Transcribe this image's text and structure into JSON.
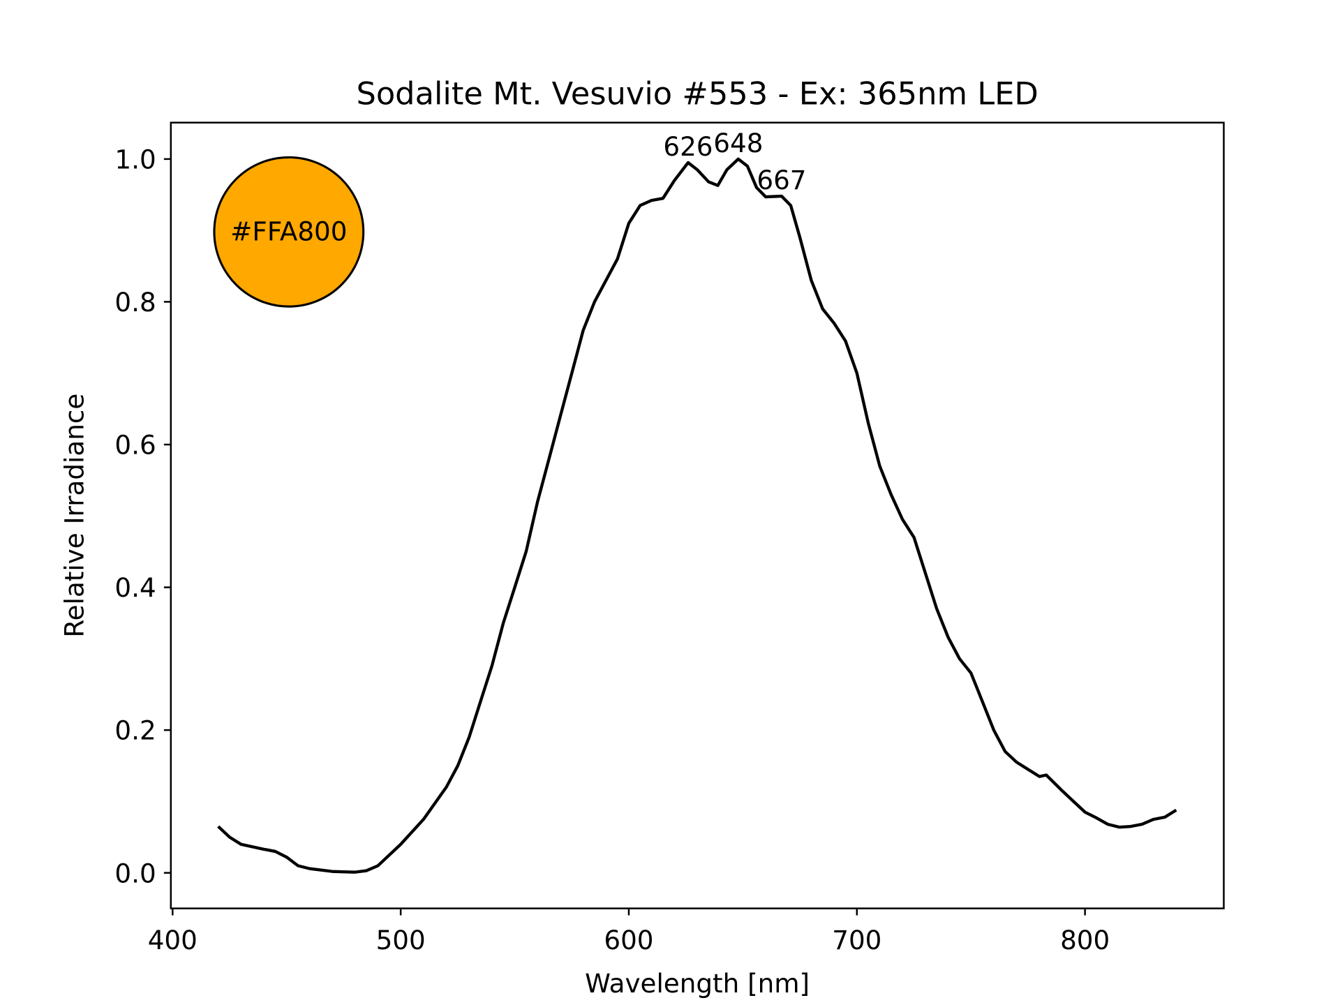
{
  "chart_data": {
    "type": "line",
    "title": "Sodalite Mt. Vesuvio #553 - Ex: 365nm LED",
    "xlabel": "Wavelength [nm]",
    "ylabel": "Relative Irradiance",
    "xlim": [
      399,
      861
    ],
    "ylim": [
      -0.05,
      1.05
    ],
    "xticks": [
      400,
      500,
      600,
      700,
      800
    ],
    "xtick_labels": [
      "400",
      "500",
      "600",
      "700",
      "800"
    ],
    "yticks": [
      0.0,
      0.2,
      0.4,
      0.6,
      0.8,
      1.0
    ],
    "ytick_labels": [
      "0.0",
      "0.2",
      "0.4",
      "0.6",
      "0.8",
      "1.0"
    ],
    "grid": false,
    "series": [
      {
        "name": "spectrum",
        "color": "#000000",
        "x": [
          420,
          425,
          430,
          440,
          445,
          450,
          455,
          460,
          470,
          480,
          485,
          490,
          495,
          500,
          510,
          520,
          525,
          530,
          535,
          540,
          545,
          550,
          555,
          560,
          565,
          570,
          575,
          580,
          585,
          590,
          595,
          600,
          605,
          610,
          615,
          620,
          626,
          630,
          635,
          639,
          643,
          648,
          652,
          656,
          660,
          667,
          671,
          675,
          680,
          685,
          690,
          695,
          700,
          705,
          710,
          715,
          720,
          725,
          730,
          735,
          740,
          745,
          750,
          755,
          760,
          765,
          770,
          775,
          780,
          783,
          790,
          795,
          800,
          805,
          810,
          815,
          820,
          825,
          830,
          835,
          840
        ],
        "y": [
          0.065,
          0.05,
          0.04,
          0.033,
          0.03,
          0.022,
          0.01,
          0.006,
          0.002,
          0.001,
          0.003,
          0.01,
          0.025,
          0.04,
          0.075,
          0.12,
          0.15,
          0.19,
          0.24,
          0.29,
          0.35,
          0.4,
          0.45,
          0.52,
          0.58,
          0.64,
          0.7,
          0.76,
          0.8,
          0.83,
          0.86,
          0.91,
          0.935,
          0.942,
          0.945,
          0.97,
          0.995,
          0.985,
          0.968,
          0.963,
          0.985,
          1.0,
          0.99,
          0.96,
          0.947,
          0.948,
          0.935,
          0.89,
          0.83,
          0.79,
          0.77,
          0.745,
          0.7,
          0.63,
          0.57,
          0.53,
          0.495,
          0.47,
          0.42,
          0.37,
          0.33,
          0.3,
          0.28,
          0.24,
          0.2,
          0.17,
          0.155,
          0.145,
          0.135,
          0.137,
          0.115,
          0.1,
          0.085,
          0.077,
          0.068,
          0.064,
          0.065,
          0.068,
          0.075,
          0.078,
          0.088
        ]
      }
    ],
    "peak_annotations": [
      {
        "label": "626",
        "x": 626,
        "y": 0.995
      },
      {
        "label": "648",
        "x": 648,
        "y": 1.0
      },
      {
        "label": "667",
        "x": 667,
        "y": 0.948
      }
    ],
    "color_swatch": {
      "label": "#FFA800",
      "color": "#FFA800"
    }
  }
}
